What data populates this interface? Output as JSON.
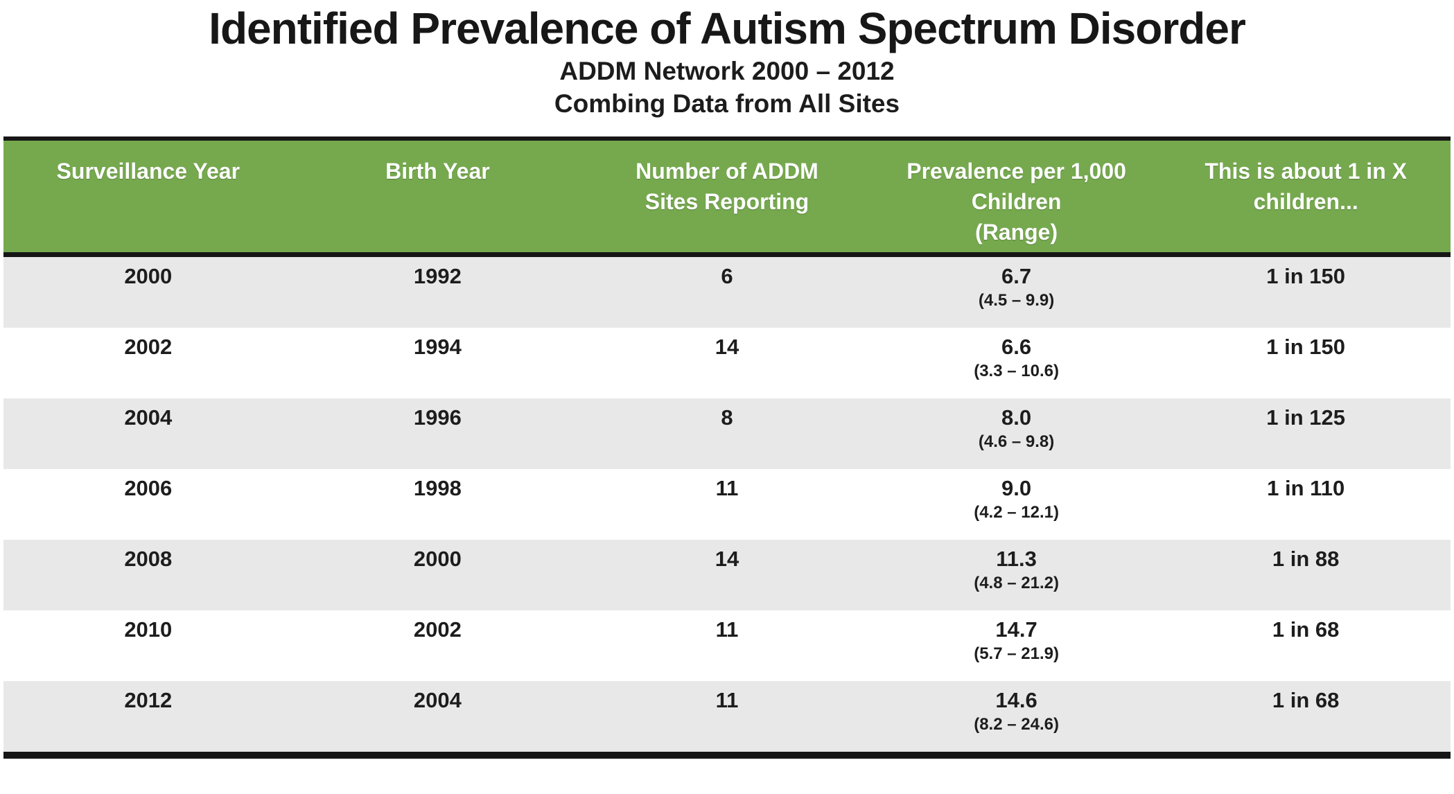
{
  "title": "Identified Prevalence of Autism Spectrum Disorder",
  "subtitle1": "ADDM Network 2000 – 2012",
  "subtitle2": "Combing Data from All Sites",
  "colors": {
    "header_bg": "#76A94E",
    "header_text": "#FFFFFF",
    "alt_row_bg": "#E8E8E8",
    "border": "#161616"
  },
  "chart_data": {
    "type": "table",
    "columns": [
      "Surveillance Year",
      "Birth Year",
      "Number of ADDM\nSites Reporting",
      "Prevalence per 1,000\nChildren\n(Range)",
      "This is about 1 in X\nchildren..."
    ],
    "rows": [
      {
        "surveillance_year": "2000",
        "birth_year": "1992",
        "sites_reporting": "6",
        "prevalence": "6.7",
        "range": "(4.5 – 9.9)",
        "one_in_x": "1 in 150"
      },
      {
        "surveillance_year": "2002",
        "birth_year": "1994",
        "sites_reporting": "14",
        "prevalence": "6.6",
        "range": "(3.3 – 10.6)",
        "one_in_x": "1 in 150"
      },
      {
        "surveillance_year": "2004",
        "birth_year": "1996",
        "sites_reporting": "8",
        "prevalence": "8.0",
        "range": "(4.6 – 9.8)",
        "one_in_x": "1 in 125"
      },
      {
        "surveillance_year": "2006",
        "birth_year": "1998",
        "sites_reporting": "11",
        "prevalence": "9.0",
        "range": "(4.2 – 12.1)",
        "one_in_x": "1 in 110"
      },
      {
        "surveillance_year": "2008",
        "birth_year": "2000",
        "sites_reporting": "14",
        "prevalence": "11.3",
        "range": "(4.8 – 21.2)",
        "one_in_x": "1 in 88"
      },
      {
        "surveillance_year": "2010",
        "birth_year": "2002",
        "sites_reporting": "11",
        "prevalence": "14.7",
        "range": "(5.7 – 21.9)",
        "one_in_x": "1 in 68"
      },
      {
        "surveillance_year": "2012",
        "birth_year": "2004",
        "sites_reporting": "11",
        "prevalence": "14.6",
        "range": "(8.2 – 24.6)",
        "one_in_x": "1 in 68"
      }
    ]
  }
}
